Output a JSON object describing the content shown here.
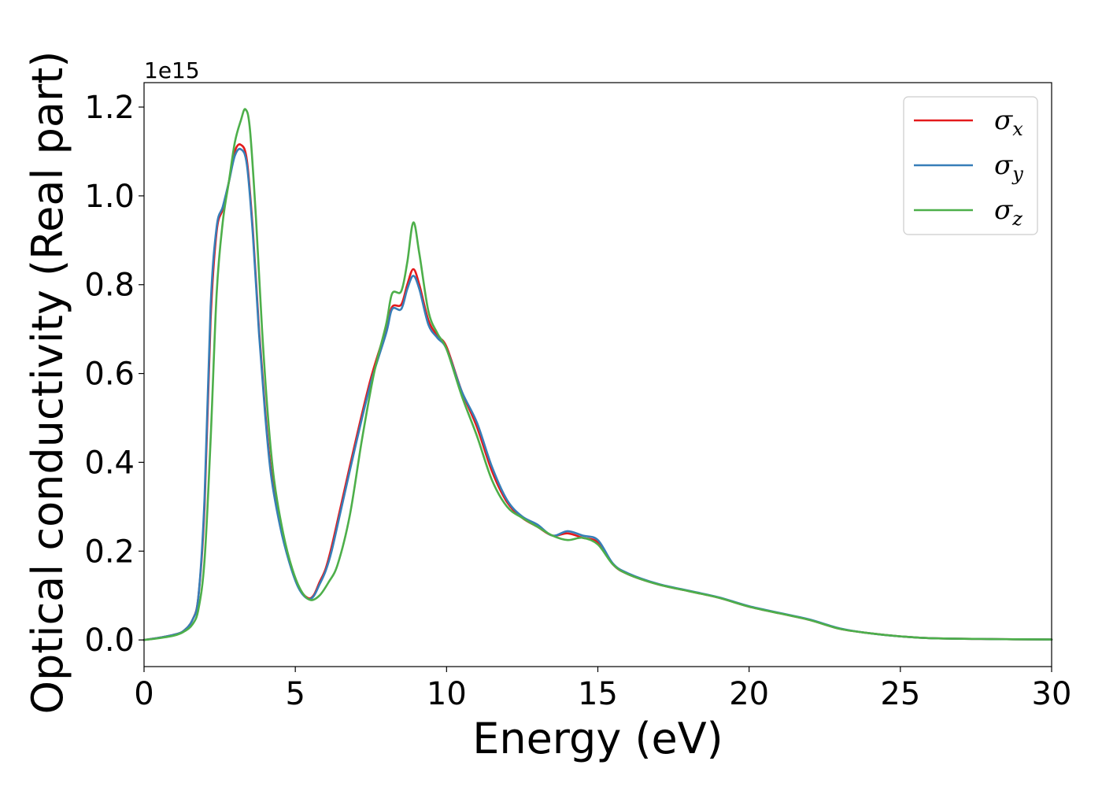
{
  "chart_data": {
    "type": "line",
    "xlabel": "Energy (eV)",
    "ylabel": "Optical conductivity (Real part)",
    "offset_text": "1e15",
    "scale": 1000000000000000.0,
    "xlim": [
      0,
      30
    ],
    "ylim": [
      -0.06,
      1.255
    ],
    "x_ticks": [
      0,
      5,
      10,
      15,
      20,
      25,
      30
    ],
    "x_tick_labels": [
      "0",
      "5",
      "10",
      "15",
      "20",
      "25",
      "30"
    ],
    "y_ticks": [
      0.0,
      0.2,
      0.4,
      0.6,
      0.8,
      1.0,
      1.2
    ],
    "y_tick_labels": [
      "0.0",
      "0.2",
      "0.4",
      "0.6",
      "0.8",
      "1.0",
      "1.2"
    ],
    "grid": false,
    "legend_position": "top-right",
    "colors": {
      "sigma_x": "#e41a1c",
      "sigma_y": "#377eb8",
      "sigma_z": "#4daf4a"
    },
    "series": [
      {
        "name": "σx",
        "legend_base": "σ",
        "legend_sub": "x",
        "color": "#e41a1c",
        "x": [
          0,
          0.5,
          1,
          1.3,
          1.6,
          1.8,
          2,
          2.2,
          2.4,
          2.6,
          2.8,
          3,
          3.2,
          3.4,
          3.6,
          3.8,
          4,
          4.2,
          4.5,
          4.8,
          5.1,
          5.4,
          5.6,
          5.8,
          6,
          6.2,
          6.5,
          7,
          7.5,
          8,
          8.2,
          8.5,
          8.7,
          8.9,
          9.1,
          9.4,
          9.7,
          10,
          10.5,
          11,
          11.5,
          12,
          12.5,
          13,
          13.5,
          14,
          14.5,
          15,
          15.5,
          16,
          17,
          18,
          19,
          20,
          21,
          22,
          23,
          24,
          25,
          26,
          28,
          30
        ],
        "y": [
          0,
          0.005,
          0.012,
          0.02,
          0.045,
          0.1,
          0.3,
          0.72,
          0.92,
          0.97,
          1.03,
          1.1,
          1.115,
          1.08,
          0.92,
          0.7,
          0.52,
          0.38,
          0.26,
          0.18,
          0.12,
          0.095,
          0.1,
          0.13,
          0.16,
          0.21,
          0.3,
          0.45,
          0.59,
          0.7,
          0.75,
          0.755,
          0.8,
          0.835,
          0.8,
          0.72,
          0.685,
          0.66,
          0.56,
          0.48,
          0.38,
          0.31,
          0.275,
          0.255,
          0.235,
          0.24,
          0.23,
          0.22,
          0.17,
          0.148,
          0.125,
          0.11,
          0.095,
          0.075,
          0.06,
          0.045,
          0.025,
          0.015,
          0.008,
          0.004,
          0.002,
          0.001
        ]
      },
      {
        "name": "σy",
        "legend_base": "σ",
        "legend_sub": "y",
        "color": "#377eb8",
        "x": [
          0,
          0.5,
          1,
          1.3,
          1.6,
          1.8,
          2,
          2.2,
          2.4,
          2.6,
          2.8,
          3,
          3.2,
          3.4,
          3.6,
          3.8,
          4,
          4.2,
          4.5,
          4.8,
          5.1,
          5.4,
          5.6,
          5.8,
          6,
          6.2,
          6.5,
          7,
          7.5,
          8,
          8.2,
          8.5,
          8.7,
          8.9,
          9.1,
          9.4,
          9.7,
          10,
          10.5,
          11,
          11.5,
          12,
          12.5,
          13,
          13.5,
          14,
          14.5,
          15,
          15.5,
          16,
          17,
          18,
          19,
          20,
          21,
          22,
          23,
          24,
          25,
          26,
          28,
          30
        ],
        "y": [
          0,
          0.005,
          0.012,
          0.02,
          0.045,
          0.1,
          0.32,
          0.75,
          0.93,
          0.975,
          1.03,
          1.09,
          1.105,
          1.07,
          0.91,
          0.69,
          0.51,
          0.37,
          0.255,
          0.175,
          0.118,
          0.093,
          0.098,
          0.125,
          0.155,
          0.2,
          0.29,
          0.44,
          0.58,
          0.69,
          0.745,
          0.745,
          0.79,
          0.82,
          0.79,
          0.71,
          0.68,
          0.655,
          0.56,
          0.49,
          0.39,
          0.315,
          0.278,
          0.26,
          0.235,
          0.245,
          0.235,
          0.225,
          0.172,
          0.15,
          0.126,
          0.111,
          0.096,
          0.076,
          0.061,
          0.046,
          0.026,
          0.015,
          0.008,
          0.004,
          0.002,
          0.001
        ]
      },
      {
        "name": "σz",
        "legend_base": "σ",
        "legend_sub": "z",
        "color": "#4daf4a",
        "x": [
          0,
          0.5,
          1,
          1.3,
          1.6,
          1.8,
          2,
          2.2,
          2.4,
          2.6,
          2.8,
          3,
          3.2,
          3.35,
          3.5,
          3.7,
          3.9,
          4.1,
          4.3,
          4.6,
          4.9,
          5.2,
          5.5,
          5.8,
          6.1,
          6.4,
          6.8,
          7.2,
          7.6,
          8,
          8.2,
          8.5,
          8.7,
          8.9,
          9.1,
          9.4,
          9.7,
          10,
          10.5,
          11,
          11.5,
          12,
          12.5,
          13,
          13.5,
          14,
          14.5,
          15,
          15.5,
          16,
          17,
          18,
          19,
          20,
          21,
          22,
          23,
          24,
          25,
          26,
          28,
          30
        ],
        "y": [
          0,
          0.004,
          0.01,
          0.018,
          0.035,
          0.07,
          0.18,
          0.45,
          0.78,
          0.94,
          1.03,
          1.12,
          1.17,
          1.195,
          1.15,
          0.95,
          0.7,
          0.5,
          0.36,
          0.24,
          0.16,
          0.11,
          0.09,
          0.1,
          0.13,
          0.17,
          0.28,
          0.45,
          0.6,
          0.71,
          0.78,
          0.785,
          0.85,
          0.94,
          0.87,
          0.74,
          0.69,
          0.655,
          0.55,
          0.46,
          0.36,
          0.3,
          0.275,
          0.255,
          0.235,
          0.225,
          0.23,
          0.215,
          0.17,
          0.148,
          0.125,
          0.11,
          0.095,
          0.075,
          0.06,
          0.045,
          0.025,
          0.015,
          0.008,
          0.004,
          0.002,
          0.001
        ]
      }
    ]
  }
}
